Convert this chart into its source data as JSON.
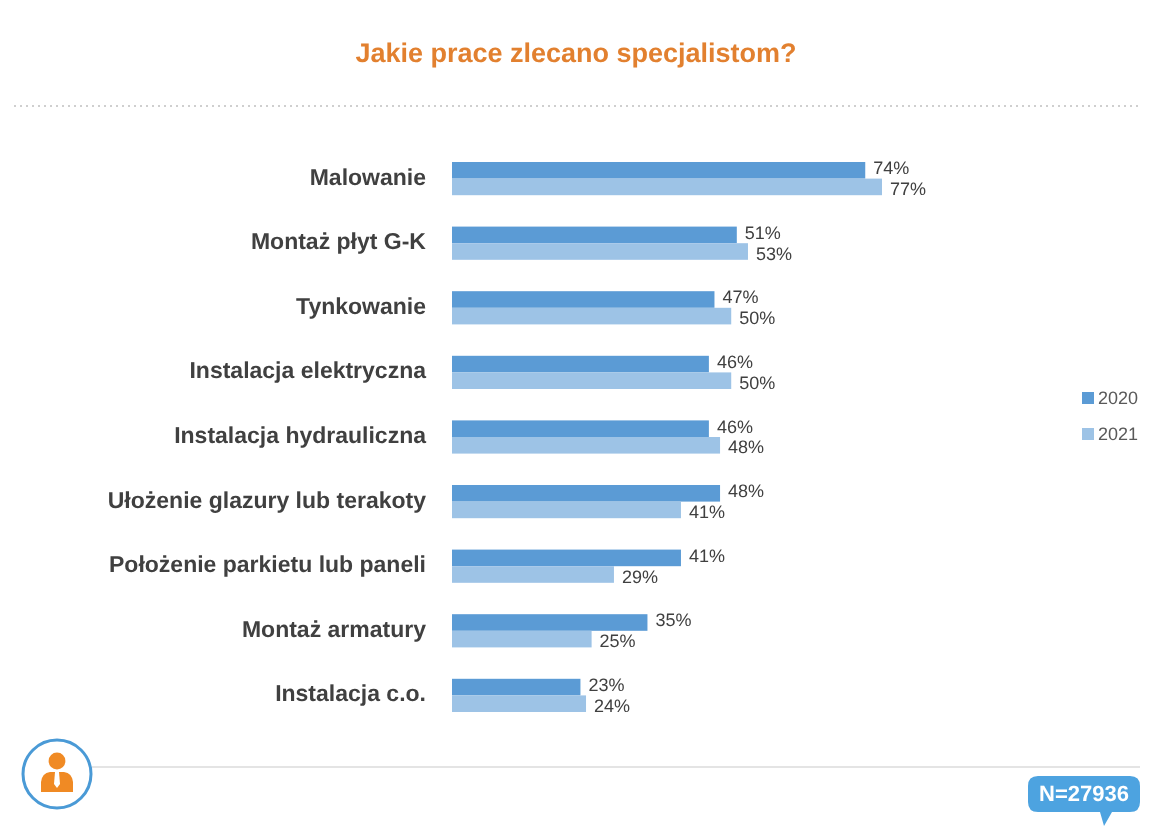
{
  "chart_data": {
    "type": "bar",
    "orientation": "horizontal",
    "title": "Jakie prace zlecano specjalistom?",
    "categories": [
      "Malowanie",
      "Montaż płyt G-K",
      "Tynkowanie",
      "Instalacja elektryczna",
      "Instalacja hydrauliczna",
      "Ułożenie glazury lub terakoty",
      "Położenie parkietu lub paneli",
      "Montaż armatury",
      "Instalacja c.o."
    ],
    "series": [
      {
        "name": "2020",
        "color": "#5b9bd5",
        "values": [
          74,
          51,
          47,
          46,
          46,
          48,
          41,
          35,
          23
        ],
        "value_labels": [
          "74%",
          "51%",
          "47%",
          "46%",
          "46%",
          "48%",
          "41%",
          "35%",
          "23%"
        ]
      },
      {
        "name": "2021",
        "color": "#9dc3e6",
        "values": [
          77,
          53,
          50,
          50,
          48,
          41,
          29,
          25,
          24
        ],
        "value_labels": [
          "77%",
          "53%",
          "50%",
          "50%",
          "48%",
          "41%",
          "29%",
          "25%",
          "24%"
        ]
      }
    ],
    "tick_labels": "y",
    "legend": "right",
    "annotations": [
      "N=27936"
    ]
  }
}
